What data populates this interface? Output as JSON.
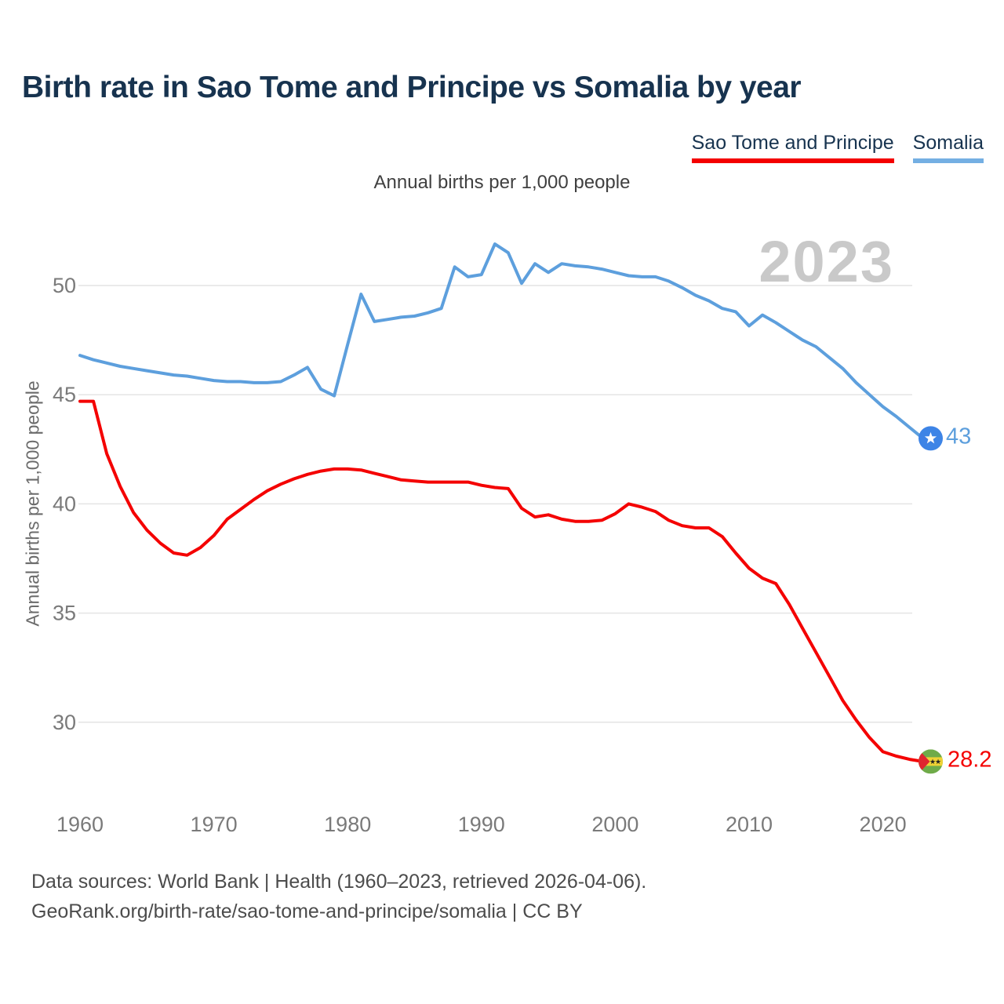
{
  "page": {
    "title": "Birth rate in Sao Tome and Principe vs Somalia by year"
  },
  "legend": {
    "items": [
      {
        "label": "Sao Tome and Principe",
        "color": "#f40000"
      },
      {
        "label": "Somalia",
        "color": "#74afe3"
      }
    ]
  },
  "chart": {
    "subtitle": "Annual births per 1,000 people",
    "y_axis_title": "Annual births per 1,000 people",
    "watermark": "2023"
  },
  "chart_data": {
    "type": "line",
    "title": "Birth rate in Sao Tome and Principe vs Somalia by year",
    "xlabel": "",
    "ylabel": "Annual births per 1,000 people",
    "x_ticks": [
      1960,
      1970,
      1980,
      1990,
      2000,
      2010,
      2020
    ],
    "y_ticks": [
      50,
      45,
      40,
      35,
      30
    ],
    "xlim": [
      1960,
      2023
    ],
    "ylim": [
      27,
      52.5
    ],
    "grid": "horizontal",
    "legend_position": "top-right",
    "x": [
      1960,
      1961,
      1962,
      1963,
      1964,
      1965,
      1966,
      1967,
      1968,
      1969,
      1970,
      1971,
      1972,
      1973,
      1974,
      1975,
      1976,
      1977,
      1978,
      1979,
      1980,
      1981,
      1982,
      1983,
      1984,
      1985,
      1986,
      1987,
      1988,
      1989,
      1990,
      1991,
      1992,
      1993,
      1994,
      1995,
      1996,
      1997,
      1998,
      1999,
      2000,
      2001,
      2002,
      2003,
      2004,
      2005,
      2006,
      2007,
      2008,
      2009,
      2010,
      2011,
      2012,
      2013,
      2014,
      2015,
      2016,
      2017,
      2018,
      2019,
      2020,
      2021,
      2022,
      2023
    ],
    "series": [
      {
        "name": "Sao Tome and Principe",
        "color": "#f40000",
        "end_label": "28.2",
        "flag_icon": "sao-tome-flag-icon",
        "flag_colors": {
          "green": "#6fab49",
          "yellow": "#efd235",
          "red": "#e0252f",
          "stars": "#222222"
        },
        "values": [
          44.7,
          44.7,
          42.3,
          40.8,
          39.6,
          38.8,
          38.2,
          37.75,
          37.65,
          38.0,
          38.55,
          39.3,
          39.75,
          40.2,
          40.6,
          40.9,
          41.15,
          41.35,
          41.5,
          41.6,
          41.6,
          41.55,
          41.4,
          41.25,
          41.1,
          41.05,
          41.0,
          41.0,
          41.0,
          41.0,
          40.85,
          40.75,
          40.7,
          39.8,
          39.4,
          39.5,
          39.3,
          39.2,
          39.2,
          39.25,
          39.55,
          40.0,
          39.85,
          39.65,
          39.25,
          39.0,
          38.9,
          38.9,
          38.5,
          37.75,
          37.05,
          36.6,
          36.35,
          35.4,
          34.3,
          33.2,
          32.1,
          31.0,
          30.1,
          29.3,
          28.65,
          28.45,
          28.3,
          28.2
        ]
      },
      {
        "name": "Somalia",
        "color": "#5d9fdd",
        "end_label": "43",
        "flag_icon": "somalia-flag-icon",
        "flag_colors": {
          "circle": "#3d84e6",
          "star": "#ffffff"
        },
        "values": [
          46.8,
          46.6,
          46.45,
          46.3,
          46.2,
          46.1,
          46.0,
          45.9,
          45.85,
          45.75,
          45.65,
          45.6,
          45.6,
          45.55,
          45.55,
          45.6,
          45.9,
          46.25,
          45.25,
          44.95,
          47.3,
          49.6,
          48.35,
          48.45,
          48.55,
          48.6,
          48.75,
          48.95,
          50.85,
          50.4,
          50.5,
          51.9,
          51.5,
          50.1,
          51.0,
          50.6,
          51.0,
          50.9,
          50.85,
          50.75,
          50.6,
          50.45,
          50.4,
          50.4,
          50.2,
          49.9,
          49.55,
          49.3,
          48.95,
          48.8,
          48.15,
          48.65,
          48.3,
          47.9,
          47.5,
          47.2,
          46.7,
          46.2,
          45.55,
          45.0,
          44.45,
          44.0,
          43.5,
          43.0
        ]
      }
    ]
  },
  "footer": {
    "line1": "Data sources: World Bank | Health (1960–2023, retrieved 2026-04-06).",
    "line2": "GeoRank.org/birth-rate/sao-tome-and-principe/somalia | CC BY"
  }
}
